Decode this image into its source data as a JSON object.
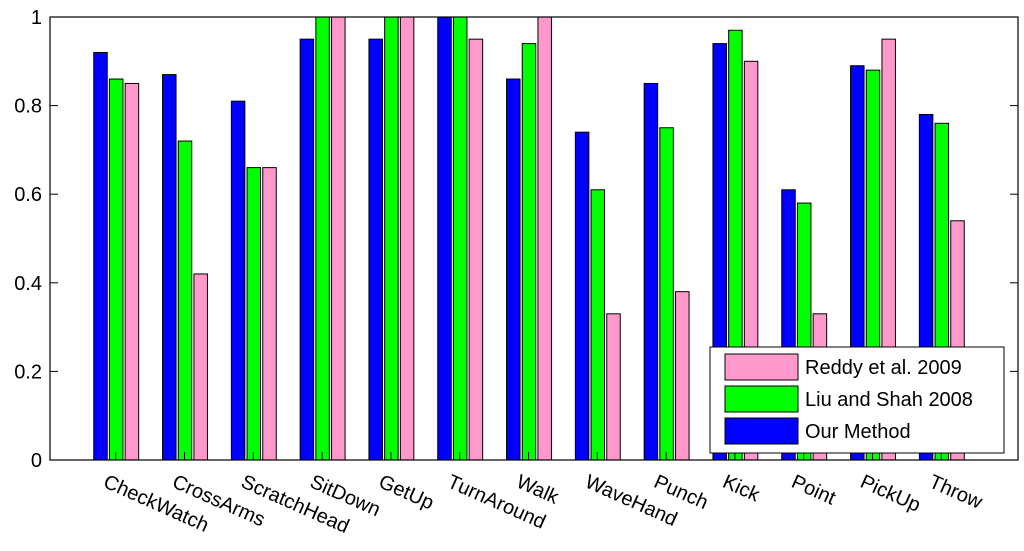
{
  "chart_data": {
    "type": "bar",
    "categories": [
      "CheckWatch",
      "CrossArms",
      "ScratchHead",
      "SitDown",
      "GetUp",
      "TurnAround",
      "Walk",
      "WaveHand",
      "Punch",
      "Kick",
      "Point",
      "PickUp",
      "Throw"
    ],
    "series": [
      {
        "name": "Our Method",
        "color": "#0000ff",
        "values": [
          0.92,
          0.87,
          0.81,
          0.95,
          0.95,
          1.0,
          0.86,
          0.74,
          0.85,
          0.94,
          0.61,
          0.89,
          0.78
        ]
      },
      {
        "name": "Liu and Shah 2008",
        "color": "#00ff00",
        "values": [
          0.86,
          0.72,
          0.66,
          1.0,
          1.0,
          1.0,
          0.94,
          0.61,
          0.75,
          0.97,
          0.58,
          0.88,
          0.76
        ]
      },
      {
        "name": "Reddy et al. 2009",
        "color": "#ff99cc",
        "values": [
          0.85,
          0.42,
          0.66,
          1.0,
          1.0,
          0.95,
          1.0,
          0.33,
          0.38,
          0.9,
          0.33,
          0.95,
          0.54
        ]
      }
    ],
    "legend_order": [
      "Reddy et al. 2009",
      "Liu and Shah 2008",
      "Our Method"
    ],
    "legend_position": "bottom-right",
    "ylim": [
      0,
      1
    ],
    "yticks": [
      "0",
      "0.2",
      "0.4",
      "0.6",
      "0.8",
      "1"
    ],
    "xlabel_rotation": "rotated",
    "grid": false
  }
}
